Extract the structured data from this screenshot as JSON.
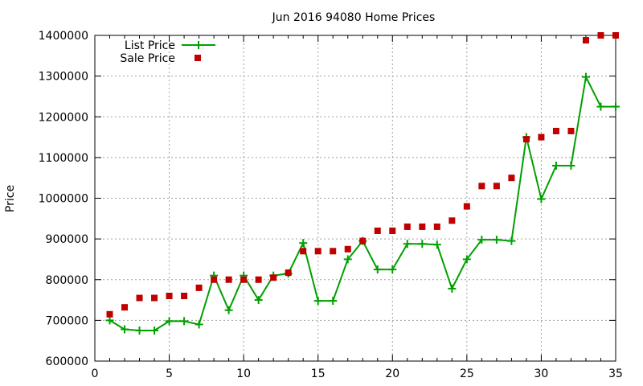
{
  "chart_data": {
    "type": "line",
    "title": "Jun 2016 94080 Home Prices",
    "xlabel": "",
    "ylabel": "Price",
    "xlim": [
      0,
      35
    ],
    "ylim": [
      600000,
      1400000
    ],
    "x_ticks": [
      0,
      5,
      10,
      15,
      20,
      25,
      30,
      35
    ],
    "y_ticks": [
      600000,
      700000,
      800000,
      900000,
      1000000,
      1100000,
      1200000,
      1300000,
      1400000
    ],
    "grid": true,
    "legend_position": "top-left",
    "series": [
      {
        "name": "List Price",
        "style": "line-with-plus-markers",
        "color": "#00a000",
        "x": [
          1,
          2,
          3,
          4,
          5,
          6,
          7,
          8,
          9,
          10,
          11,
          12,
          13,
          14,
          15,
          16,
          17,
          18,
          19,
          20,
          21,
          22,
          23,
          24,
          25,
          26,
          27,
          28,
          29,
          30,
          31,
          32,
          33,
          34,
          35
        ],
        "values": [
          700000,
          678000,
          675000,
          675000,
          698000,
          698000,
          690000,
          810000,
          725000,
          810000,
          750000,
          810000,
          815000,
          890000,
          748000,
          748000,
          850000,
          895000,
          825000,
          825000,
          888000,
          888000,
          886000,
          778000,
          850000,
          898000,
          898000,
          895000,
          1150000,
          998000,
          1080000,
          1080000,
          1298000,
          1225000,
          1225000
        ]
      },
      {
        "name": "Sale Price",
        "style": "square-markers",
        "color": "#c00000",
        "x": [
          1,
          2,
          3,
          4,
          5,
          6,
          7,
          8,
          9,
          10,
          11,
          12,
          13,
          14,
          15,
          16,
          17,
          18,
          19,
          20,
          21,
          22,
          23,
          24,
          25,
          26,
          27,
          28,
          29,
          30,
          31,
          32,
          33,
          34,
          35
        ],
        "values": [
          715000,
          732000,
          755000,
          755000,
          760000,
          760000,
          780000,
          800000,
          800000,
          800000,
          800000,
          805000,
          817000,
          870000,
          870000,
          870000,
          875000,
          895000,
          920000,
          920000,
          930000,
          930000,
          930000,
          945000,
          980000,
          1030000,
          1030000,
          1050000,
          1145000,
          1150000,
          1165000,
          1165000,
          1388000,
          1400000,
          1400000
        ]
      }
    ]
  }
}
